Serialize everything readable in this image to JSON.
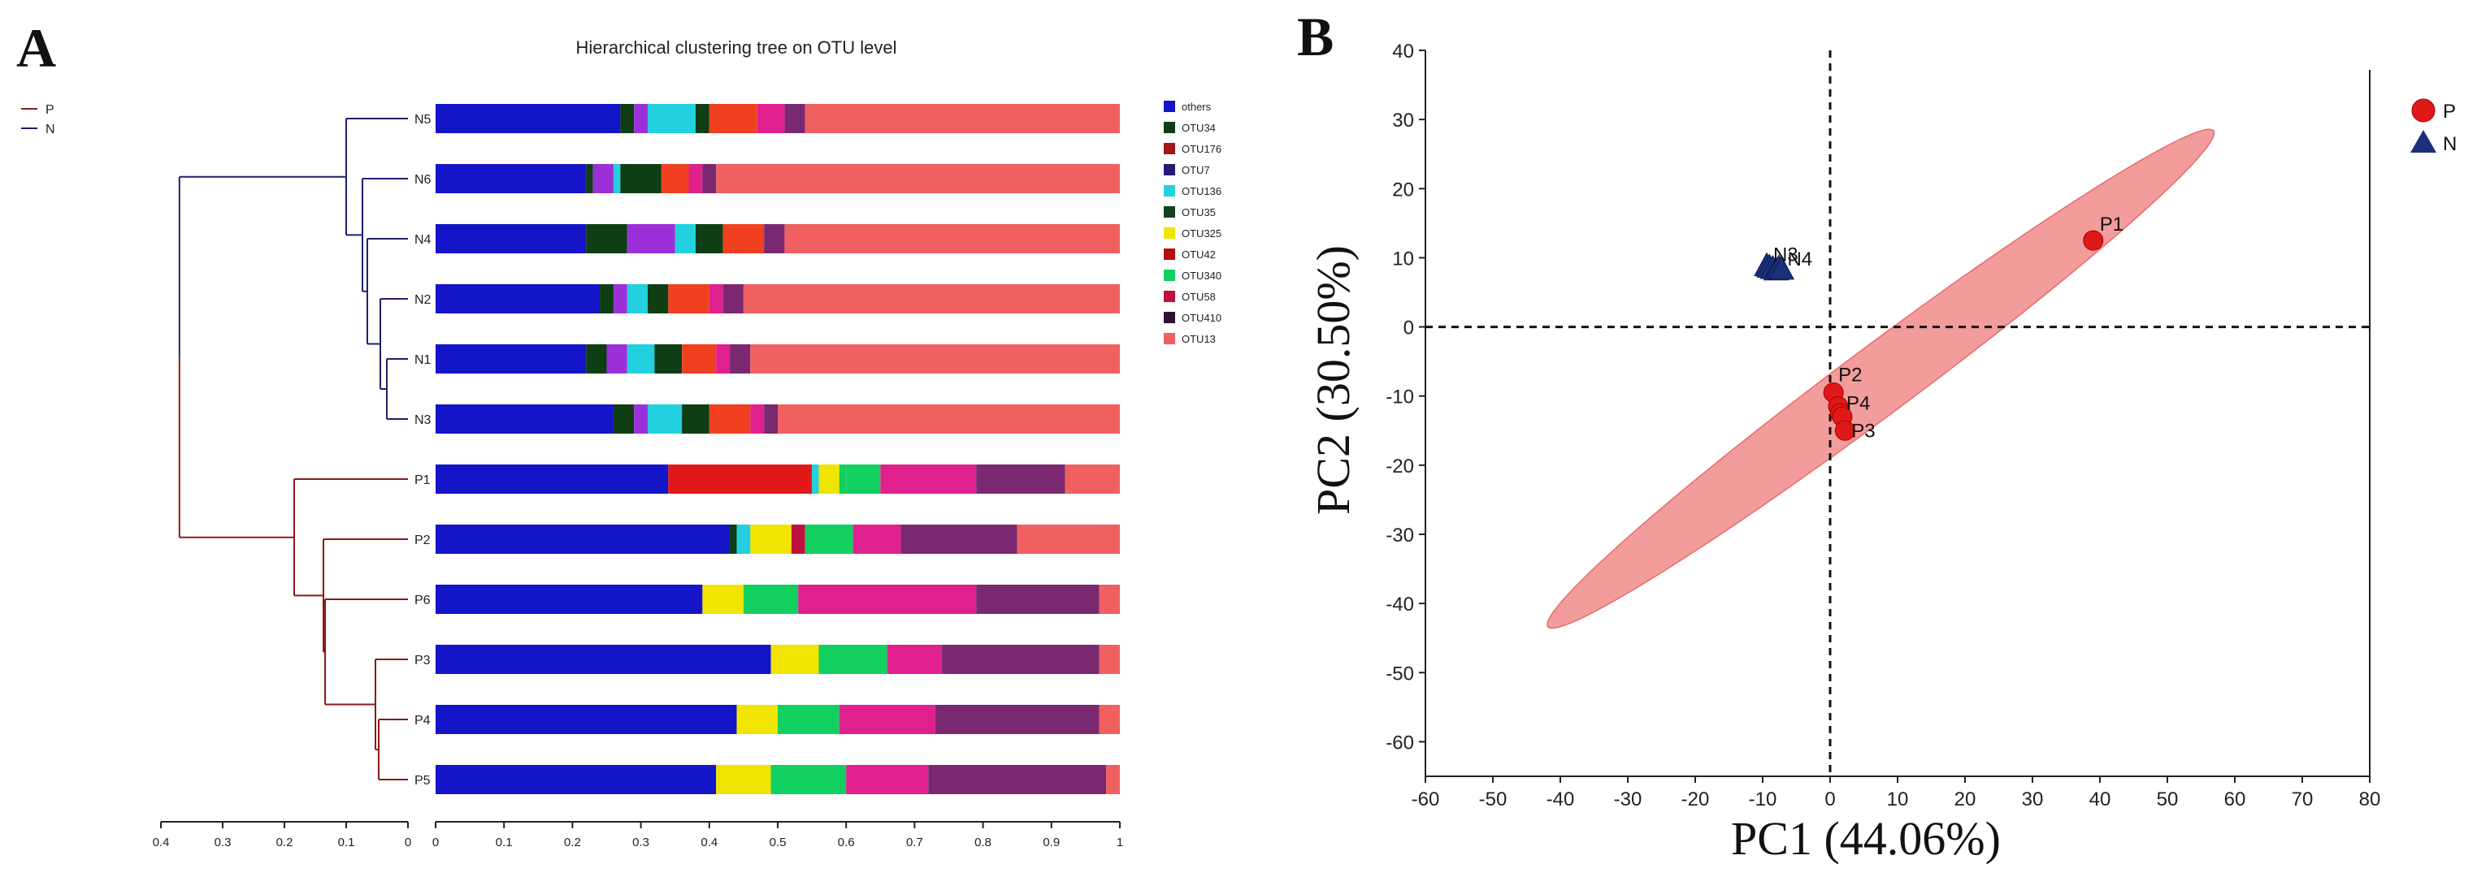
{
  "panels": {
    "a_label": "A",
    "b_label": "B"
  },
  "colors": {
    "P": "#8b1a1a",
    "N": "#1f1f6e",
    "ellipse": "#f08080",
    "pointP": "#e01818",
    "pointN": "#1c2f7a"
  },
  "chart_data": [
    {
      "type": "bar",
      "subtype": "stacked-100-with-dendrogram",
      "title": "Hierarchical clustering tree on OTU level",
      "group_legend": [
        {
          "name": "P",
          "color": "#8b1a1a"
        },
        {
          "name": "N",
          "color": "#1f1f6e"
        }
      ],
      "dendrogram_axis": {
        "ticks": [
          "0.4",
          "0.3",
          "0.2",
          "0.1",
          "0"
        ],
        "min": 0,
        "max": 0.4
      },
      "bar_axis": {
        "ticks": [
          "0",
          "0.1",
          "0.2",
          "0.3",
          "0.4",
          "0.5",
          "0.6",
          "0.7",
          "0.8",
          "0.9",
          "1"
        ],
        "min": 0,
        "max": 1
      },
      "legend": [
        {
          "name": "others",
          "color": "#1414c8"
        },
        {
          "name": "OTU34",
          "color": "#0f3d14"
        },
        {
          "name": "OTU176",
          "color": "#a01818"
        },
        {
          "name": "OTU7",
          "color": "#2a1a78"
        },
        {
          "name": "OTU136",
          "color": "#22d0e0"
        },
        {
          "name": "OTU35",
          "color": "#164020"
        },
        {
          "name": "OTU325",
          "color": "#f0e400"
        },
        {
          "name": "OTU42",
          "color": "#b01010"
        },
        {
          "name": "OTU340",
          "color": "#12d060"
        },
        {
          "name": "OTU58",
          "color": "#c01040"
        },
        {
          "name": "OTU410",
          "color": "#301030"
        },
        {
          "name": "OTU13",
          "color": "#f06060"
        }
      ],
      "samples": [
        {
          "name": "N5",
          "segments": [
            {
              "c": "#1414c8",
              "v": 0.27
            },
            {
              "c": "#0f3d14",
              "v": 0.02
            },
            {
              "c": "#9b30d8",
              "v": 0.02
            },
            {
              "c": "#22d0e0",
              "v": 0.07
            },
            {
              "c": "#0f3d14",
              "v": 0.02
            },
            {
              "c": "#f04020",
              "v": 0.07
            },
            {
              "c": "#e0208c",
              "v": 0.04
            },
            {
              "c": "#7a2870",
              "v": 0.03
            },
            {
              "c": "#f06060",
              "v": 0.46
            }
          ]
        },
        {
          "name": "N6",
          "segments": [
            {
              "c": "#1414c8",
              "v": 0.22
            },
            {
              "c": "#0f3d14",
              "v": 0.01
            },
            {
              "c": "#9b30d8",
              "v": 0.03
            },
            {
              "c": "#22d0e0",
              "v": 0.01
            },
            {
              "c": "#0f3d14",
              "v": 0.06
            },
            {
              "c": "#f04020",
              "v": 0.04
            },
            {
              "c": "#e0208c",
              "v": 0.02
            },
            {
              "c": "#7a2870",
              "v": 0.02
            },
            {
              "c": "#f06060",
              "v": 0.59
            }
          ]
        },
        {
          "name": "N4",
          "segments": [
            {
              "c": "#1414c8",
              "v": 0.22
            },
            {
              "c": "#0f3d14",
              "v": 0.06
            },
            {
              "c": "#9b30d8",
              "v": 0.07
            },
            {
              "c": "#22d0e0",
              "v": 0.03
            },
            {
              "c": "#0f3d14",
              "v": 0.04
            },
            {
              "c": "#f04020",
              "v": 0.06
            },
            {
              "c": "#e0208c",
              "v": 0.0
            },
            {
              "c": "#7a2870",
              "v": 0.03
            },
            {
              "c": "#f06060",
              "v": 0.49
            }
          ]
        },
        {
          "name": "N2",
          "segments": [
            {
              "c": "#1414c8",
              "v": 0.24
            },
            {
              "c": "#0f3d14",
              "v": 0.02
            },
            {
              "c": "#9b30d8",
              "v": 0.02
            },
            {
              "c": "#22d0e0",
              "v": 0.03
            },
            {
              "c": "#0f3d14",
              "v": 0.03
            },
            {
              "c": "#f04020",
              "v": 0.06
            },
            {
              "c": "#e0208c",
              "v": 0.02
            },
            {
              "c": "#7a2870",
              "v": 0.03
            },
            {
              "c": "#f06060",
              "v": 0.55
            }
          ]
        },
        {
          "name": "N1",
          "segments": [
            {
              "c": "#1414c8",
              "v": 0.22
            },
            {
              "c": "#0f3d14",
              "v": 0.03
            },
            {
              "c": "#9b30d8",
              "v": 0.03
            },
            {
              "c": "#22d0e0",
              "v": 0.04
            },
            {
              "c": "#0f3d14",
              "v": 0.04
            },
            {
              "c": "#f04020",
              "v": 0.05
            },
            {
              "c": "#e0208c",
              "v": 0.02
            },
            {
              "c": "#7a2870",
              "v": 0.03
            },
            {
              "c": "#f06060",
              "v": 0.54
            }
          ]
        },
        {
          "name": "N3",
          "segments": [
            {
              "c": "#1414c8",
              "v": 0.26
            },
            {
              "c": "#0f3d14",
              "v": 0.03
            },
            {
              "c": "#9b30d8",
              "v": 0.02
            },
            {
              "c": "#22d0e0",
              "v": 0.05
            },
            {
              "c": "#0f3d14",
              "v": 0.04
            },
            {
              "c": "#f04020",
              "v": 0.06
            },
            {
              "c": "#e0208c",
              "v": 0.02
            },
            {
              "c": "#7a2870",
              "v": 0.02
            },
            {
              "c": "#f06060",
              "v": 0.5
            }
          ]
        },
        {
          "name": "P1",
          "segments": [
            {
              "c": "#1414c8",
              "v": 0.34
            },
            {
              "c": "#e01818",
              "v": 0.21
            },
            {
              "c": "#22d0e0",
              "v": 0.01
            },
            {
              "c": "#f0e400",
              "v": 0.03
            },
            {
              "c": "#12d060",
              "v": 0.01
            },
            {
              "c": "#12d060",
              "v": 0.05
            },
            {
              "c": "#e0208c",
              "v": 0.14
            },
            {
              "c": "#7a2870",
              "v": 0.13
            },
            {
              "c": "#f06060",
              "v": 0.08
            }
          ]
        },
        {
          "name": "P2",
          "segments": [
            {
              "c": "#1414c8",
              "v": 0.43
            },
            {
              "c": "#0f3d14",
              "v": 0.01
            },
            {
              "c": "#22d0e0",
              "v": 0.02
            },
            {
              "c": "#f0e400",
              "v": 0.06
            },
            {
              "c": "#c01040",
              "v": 0.02
            },
            {
              "c": "#12d060",
              "v": 0.07
            },
            {
              "c": "#e0208c",
              "v": 0.07
            },
            {
              "c": "#7a2870",
              "v": 0.17
            },
            {
              "c": "#f06060",
              "v": 0.15
            }
          ]
        },
        {
          "name": "P6",
          "segments": [
            {
              "c": "#1414c8",
              "v": 0.39
            },
            {
              "c": "#f0e400",
              "v": 0.06
            },
            {
              "c": "#12d060",
              "v": 0.08
            },
            {
              "c": "#e0208c",
              "v": 0.26
            },
            {
              "c": "#7a2870",
              "v": 0.18
            },
            {
              "c": "#f06060",
              "v": 0.03
            }
          ]
        },
        {
          "name": "P3",
          "segments": [
            {
              "c": "#1414c8",
              "v": 0.49
            },
            {
              "c": "#f0e400",
              "v": 0.07
            },
            {
              "c": "#12d060",
              "v": 0.1
            },
            {
              "c": "#e0208c",
              "v": 0.08
            },
            {
              "c": "#7a2870",
              "v": 0.23
            },
            {
              "c": "#f06060",
              "v": 0.03
            }
          ]
        },
        {
          "name": "P4",
          "segments": [
            {
              "c": "#1414c8",
              "v": 0.44
            },
            {
              "c": "#f0e400",
              "v": 0.06
            },
            {
              "c": "#12d060",
              "v": 0.09
            },
            {
              "c": "#e0208c",
              "v": 0.14
            },
            {
              "c": "#7a2870",
              "v": 0.24
            },
            {
              "c": "#f06060",
              "v": 0.03
            }
          ]
        },
        {
          "name": "P5",
          "segments": [
            {
              "c": "#1414c8",
              "v": 0.41
            },
            {
              "c": "#f0e400",
              "v": 0.08
            },
            {
              "c": "#12d060",
              "v": 0.11
            },
            {
              "c": "#e0208c",
              "v": 0.12
            },
            {
              "c": "#7a2870",
              "v": 0.26
            },
            {
              "c": "#f06060",
              "v": 0.02
            }
          ]
        }
      ],
      "dendrogram": {
        "root_height": 0.37,
        "merges": [
          {
            "a": "N5",
            "b": "N6",
            "h": 0.08
          },
          {
            "a": "N4",
            "b": "N2",
            "h": 0.06
          },
          {
            "a": "N1",
            "b": "N3",
            "h": 0.03
          }
        ]
      }
    },
    {
      "type": "scatter",
      "title": "",
      "xlabel": "PC1 (44.06%)",
      "ylabel": "PC2 (30.50%)",
      "xlim": [
        -60,
        80
      ],
      "ylim": [
        -65,
        40
      ],
      "xticks": [
        "-60",
        "-50",
        "-40",
        "-30",
        "-20",
        "-10",
        "0",
        "10",
        "20",
        "30",
        "40",
        "50",
        "60",
        "70",
        "80"
      ],
      "yticks": [
        "40",
        "30",
        "20",
        "10",
        "0",
        "-10",
        "-20",
        "-30",
        "-40",
        "-50",
        "-60"
      ],
      "reference_lines": {
        "x": 0,
        "y": 0,
        "style": "dashed"
      },
      "legend": [
        {
          "name": "P",
          "marker": "circle",
          "color": "#e01818"
        },
        {
          "name": "N",
          "marker": "triangle",
          "color": "#1c2f7a"
        }
      ],
      "ellipse": {
        "group": "P",
        "center": [
          7.5,
          -7.5
        ],
        "semi_major": 61,
        "semi_minor": 5,
        "angle_deg": 36
      },
      "series": [
        {
          "name": "P",
          "points": [
            {
              "label": "P1",
              "x": 39,
              "y": 12.5
            },
            {
              "label": "P2",
              "x": 0.5,
              "y": -9.5
            },
            {
              "label": "P4",
              "x": 1.2,
              "y": -11.5
            },
            {
              "label": "P6",
              "x": 1.5,
              "y": -12.5
            },
            {
              "label": "P5",
              "x": 1.8,
              "y": -13.0
            },
            {
              "label": "P3",
              "x": 2.2,
              "y": -15
            }
          ]
        },
        {
          "name": "N",
          "points": [
            {
              "label": "N3",
              "x": -9.4,
              "y": 8.8
            },
            {
              "label": "N2",
              "x": -9.0,
              "y": 8.6
            },
            {
              "label": "N4",
              "x": -8.5,
              "y": 8.4
            },
            {
              "label": "N5",
              "x": -8.0,
              "y": 8.2
            },
            {
              "label": "N6",
              "x": -7.6,
              "y": 8.5
            },
            {
              "label": "N1",
              "x": -7.2,
              "y": 8.3
            }
          ]
        }
      ],
      "point_labels_drawn": [
        "P1",
        "P2",
        "P4",
        "P3",
        "N3",
        "N4"
      ]
    }
  ]
}
